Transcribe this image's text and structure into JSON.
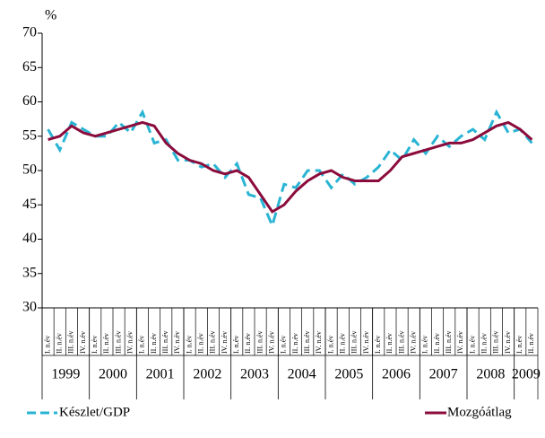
{
  "chart_data": {
    "type": "line",
    "y_axis_label": "%",
    "categories": [
      "I. n.év",
      "II. n.év",
      "III. n.év",
      "IV. n.év",
      "I. n.év",
      "II. n.év",
      "III. n.év",
      "IV. n.év",
      "I. n.év",
      "II. n.év",
      "III. n.év",
      "IV. n.év",
      "I. n.év",
      "II. n.év",
      "III. n.év",
      "IV. n.év",
      "I. n.év",
      "II. n.év",
      "III. n.év",
      "IV. n.év",
      "I. n.év",
      "II. n.év",
      "III. n.év",
      "IV. n.év",
      "I. n.év",
      "II. n.év",
      "III. n.év",
      "IV. n.év",
      "I. n.év",
      "II. n.év",
      "III. n.év",
      "IV. n.év",
      "I. n.év",
      "II. n.év",
      "III. n.év",
      "IV. n.év",
      "I. n.év",
      "II. n.év",
      "III. n.év",
      "IV. n.év",
      "I. n.év",
      "II. n.év"
    ],
    "years": [
      "1999",
      "2000",
      "2001",
      "2002",
      "2003",
      "2004",
      "2005",
      "2006",
      "2007",
      "2008",
      "2009"
    ],
    "series": [
      {
        "name": "Készlet/GDP",
        "color": "#29b4d4",
        "dashed": true,
        "values": [
          56,
          53,
          57,
          56,
          55,
          55,
          57,
          55.5,
          58.5,
          54,
          54.5,
          51.5,
          51.5,
          50.5,
          51,
          49,
          51,
          46.5,
          46,
          42,
          48,
          47.5,
          50,
          50,
          47.5,
          49.5,
          48,
          49,
          50.5,
          53,
          51.5,
          54.5,
          52.5,
          55,
          53.5,
          55,
          56,
          54.5,
          58.5,
          55.5,
          56,
          54
        ]
      },
      {
        "name": "Mozgóátlag",
        "color": "#8b0c3c",
        "dashed": false,
        "values": [
          54.5,
          55,
          56.5,
          55.5,
          55,
          55.5,
          56,
          56.5,
          57,
          56.5,
          54,
          52.5,
          51.5,
          51,
          50,
          49.5,
          50,
          49,
          46.5,
          44,
          45,
          47,
          48.5,
          49.5,
          50,
          49,
          48.5,
          48.5,
          48.5,
          50,
          52,
          52.5,
          53,
          53.5,
          54,
          54,
          54.5,
          55.5,
          56.5,
          57,
          56,
          54.5
        ]
      }
    ],
    "ylim": [
      30,
      70
    ],
    "yticks": [
      30,
      35,
      40,
      45,
      50,
      55,
      60,
      65,
      70
    ]
  }
}
